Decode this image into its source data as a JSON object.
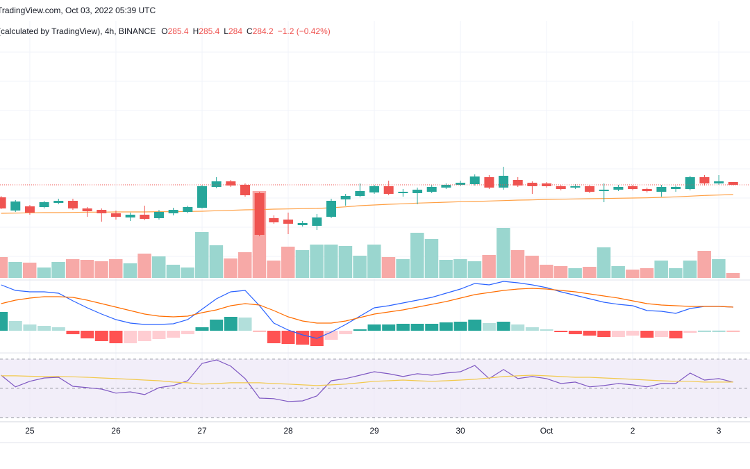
{
  "chart_data": [
    {
      "type": "candlestick",
      "source": "TradingView.com, Oct 03, 2022 05:39 UTC",
      "symbol": "(calculated by TradingView), 4h, BINANCE",
      "ohlc_labels": [
        "O",
        "H",
        "L",
        "C"
      ],
      "change_text": "−1.2 (−0.42%)",
      "categories": [
        null,
        null,
        "25",
        null,
        null,
        null,
        null,
        null,
        "26",
        null,
        null,
        null,
        null,
        null,
        "27",
        null,
        null,
        null,
        null,
        null,
        "28",
        null,
        null,
        null,
        null,
        null,
        "29",
        null,
        null,
        null,
        null,
        null,
        "30",
        null,
        null,
        null,
        null,
        null,
        "Oct",
        null,
        null,
        null,
        null,
        null,
        "2",
        null,
        null,
        null,
        null,
        null,
        "3",
        null
      ],
      "open": [
        278.8,
        273.1,
        274.9,
        274.6,
        276.4,
        277.3,
        274.0,
        273.4,
        271.9,
        270.1,
        271.3,
        269.8,
        271.9,
        272.5,
        274.3,
        283.3,
        285.7,
        284.2,
        280.6,
        269.8,
        269.2,
        266.8,
        266.5,
        270.4,
        277.9,
        279.4,
        280.9,
        283.6,
        280.6,
        280.6,
        281.2,
        283.0,
        284.2,
        284.5,
        287.5,
        283.0,
        286.3,
        285.1,
        284.8,
        283.6,
        283.0,
        283.6,
        281.5,
        282.1,
        283.6,
        282.4,
        281.2,
        282.4,
        282.4,
        287.5,
        284.8,
        285.4
      ],
      "high": [
        279.4,
        277.6,
        275.5,
        277.3,
        278.2,
        278.2,
        274.6,
        274.0,
        273.1,
        272.2,
        275.2,
        273.4,
        274.3,
        275.2,
        284.2,
        287.5,
        286.3,
        284.8,
        281.2,
        271.0,
        272.2,
        268.6,
        271.6,
        278.2,
        280.3,
        284.8,
        284.2,
        286.0,
        282.4,
        283.0,
        284.2,
        284.8,
        286.0,
        288.7,
        288.4,
        292.0,
        287.5,
        285.7,
        285.4,
        284.2,
        284.5,
        284.2,
        284.8,
        284.2,
        284.2,
        283.0,
        284.2,
        283.9,
        288.1,
        288.4,
        288.4,
        285.4
      ],
      "low": [
        273.7,
        272.5,
        271.3,
        274.0,
        275.8,
        273.4,
        270.4,
        268.3,
        269.2,
        268.6,
        268.9,
        269.2,
        271.0,
        271.9,
        274.0,
        282.7,
        283.3,
        279.1,
        262.0,
        267.4,
        262.9,
        266.2,
        264.7,
        269.8,
        275.2,
        278.8,
        280.3,
        279.7,
        279.1,
        275.8,
        280.6,
        282.4,
        283.6,
        283.9,
        282.4,
        282.1,
        283.3,
        280.3,
        283.0,
        281.8,
        282.4,
        280.6,
        276.7,
        281.5,
        281.8,
        280.9,
        279.1,
        281.2,
        281.8,
        283.9,
        284.2,
        284.0
      ],
      "close": [
        274.0,
        277.0,
        272.2,
        276.7,
        277.3,
        274.0,
        272.8,
        271.9,
        270.4,
        271.3,
        269.5,
        272.5,
        273.4,
        274.6,
        283.6,
        285.7,
        283.9,
        279.7,
        262.6,
        268.0,
        267.4,
        267.7,
        270.1,
        277.3,
        279.4,
        281.5,
        283.6,
        280.3,
        281.2,
        282.1,
        283.3,
        284.2,
        285.1,
        287.8,
        283.0,
        288.1,
        283.9,
        283.6,
        283.6,
        282.4,
        283.6,
        281.2,
        282.1,
        283.3,
        282.4,
        281.5,
        283.3,
        283.3,
        287.5,
        284.8,
        285.7,
        284.2
      ],
      "ma": {
        "color": "#ff9f43",
        "values": [
          271.9,
          272.0,
          272.1,
          272.2,
          272.2,
          272.3,
          272.4,
          272.4,
          272.5,
          272.5,
          272.5,
          272.6,
          272.6,
          272.7,
          272.8,
          273.0,
          273.2,
          273.4,
          273.5,
          273.7,
          273.8,
          273.9,
          274.0,
          274.3,
          274.7,
          275.2,
          275.5,
          275.8,
          276.0,
          276.3,
          276.5,
          276.7,
          276.9,
          277.0,
          277.2,
          277.4,
          277.6,
          277.7,
          277.9,
          278.0,
          278.1,
          278.2,
          278.3,
          278.4,
          278.5,
          278.6,
          278.8,
          279.0,
          279.3,
          279.6,
          279.8,
          280.0
        ]
      },
      "up_color": "#26a69a",
      "down_color": "#ef5350",
      "ylim": [
        260.5,
        355.0
      ],
      "grid": true
    },
    {
      "type": "volume",
      "values": [
        30,
        23,
        22,
        15,
        23,
        27,
        26,
        24,
        27,
        21,
        35,
        31,
        19,
        15,
        66,
        47,
        28,
        37,
        125,
        25,
        45,
        40,
        48,
        48,
        46,
        32,
        48,
        30,
        27,
        65,
        56,
        26,
        27,
        24,
        33,
        72,
        40,
        32,
        19,
        17,
        14,
        16,
        44,
        17,
        12,
        14,
        25,
        14,
        25,
        39,
        27,
        7
      ],
      "up_color": "#9ad6cf",
      "down_color": "#f7a9a7",
      "ylim": [
        0,
        370
      ]
    },
    {
      "type": "macd",
      "series": [
        {
          "color": "#2962ff",
          "values": [
            3.3,
            2.9,
            2.8,
            2.8,
            2.7,
            2.15,
            1.65,
            1.2,
            0.8,
            0.55,
            0.45,
            0.45,
            0.5,
            0.8,
            1.55,
            2.3,
            2.8,
            2.9,
            1.8,
            0.55,
            0.05,
            -0.3,
            -0.55,
            -0.1,
            0.45,
            1.05,
            1.65,
            1.8,
            2.0,
            2.2,
            2.4,
            2.7,
            3.0,
            3.4,
            3.3,
            3.55,
            3.45,
            3.3,
            3.1,
            2.8,
            2.55,
            2.3,
            2.05,
            1.9,
            1.8,
            1.45,
            1.4,
            1.25,
            1.6,
            1.75,
            1.75,
            1.7
          ]
        },
        {
          "color": "#ff6d00",
          "values": [
            1.95,
            2.2,
            2.35,
            2.45,
            2.45,
            2.4,
            2.2,
            1.95,
            1.7,
            1.45,
            1.2,
            1.05,
            1.0,
            1.05,
            1.3,
            1.5,
            1.8,
            1.95,
            1.85,
            1.45,
            1.0,
            0.7,
            0.55,
            0.55,
            0.7,
            0.95,
            1.2,
            1.35,
            1.5,
            1.7,
            1.9,
            2.1,
            2.35,
            2.6,
            2.75,
            2.9,
            3.0,
            3.05,
            3.0,
            2.9,
            2.8,
            2.65,
            2.5,
            2.35,
            2.15,
            1.95,
            1.85,
            1.8,
            1.75,
            1.75,
            1.75,
            1.7
          ]
        }
      ],
      "histogram": [
        1.35,
        0.7,
        0.45,
        0.35,
        0.25,
        -0.25,
        -0.55,
        -0.75,
        -0.9,
        -0.9,
        -0.75,
        -0.6,
        -0.5,
        -0.25,
        0.25,
        0.8,
        1.0,
        0.95,
        -0.05,
        -0.9,
        -0.95,
        -1.0,
        -1.1,
        -0.65,
        -0.25,
        0.1,
        0.45,
        0.45,
        0.5,
        0.5,
        0.5,
        0.6,
        0.65,
        0.8,
        0.55,
        0.65,
        0.45,
        0.25,
        0.1,
        -0.1,
        -0.25,
        -0.35,
        -0.45,
        -0.45,
        -0.35,
        -0.5,
        -0.45,
        -0.55,
        -0.15,
        0.0,
        0.0,
        -0.05
      ],
      "histogram_colors": {
        "up_strong": "#26a69a",
        "up_weak": "#b2dfdb",
        "down_strong": "#ff5252",
        "down_weak": "#ffcdd2"
      },
      "ylim": [
        -1.55,
        3.65
      ]
    },
    {
      "type": "rsi",
      "series": [
        {
          "color": "#7e57c2",
          "values": [
            59.0,
            51.0,
            54.8,
            57.1,
            57.6,
            51.4,
            50.5,
            49.5,
            46.7,
            47.6,
            45.7,
            50.5,
            51.9,
            55.2,
            67.1,
            69.5,
            65.2,
            56.7,
            43.3,
            42.9,
            41.0,
            41.4,
            44.8,
            55.2,
            56.7,
            59.0,
            61.4,
            60.0,
            58.1,
            60.0,
            59.0,
            60.5,
            61.4,
            65.7,
            56.7,
            62.9,
            56.7,
            58.1,
            56.7,
            53.3,
            54.3,
            51.0,
            51.9,
            53.3,
            52.4,
            51.0,
            53.3,
            53.3,
            60.5,
            55.7,
            56.7,
            54.3
          ]
        },
        {
          "color": "#f2c94c",
          "values": [
            58.6,
            58.6,
            58.3,
            58.1,
            58.1,
            57.9,
            57.6,
            57.1,
            56.7,
            56.2,
            55.7,
            55.2,
            54.3,
            53.8,
            52.9,
            53.3,
            53.8,
            53.8,
            53.8,
            53.3,
            52.9,
            52.4,
            51.9,
            52.4,
            52.9,
            53.8,
            54.8,
            55.2,
            55.7,
            55.2,
            54.8,
            55.2,
            55.7,
            56.2,
            57.1,
            58.1,
            58.6,
            59.0,
            58.6,
            58.1,
            57.6,
            57.6,
            57.1,
            56.7,
            56.2,
            55.7,
            55.2,
            54.8,
            54.8,
            54.3,
            54.3,
            54.3
          ]
        }
      ],
      "levels": [
        30,
        50,
        70
      ],
      "band_color": "#ede7f6",
      "ylim": [
        27.1,
        73.3
      ]
    }
  ]
}
